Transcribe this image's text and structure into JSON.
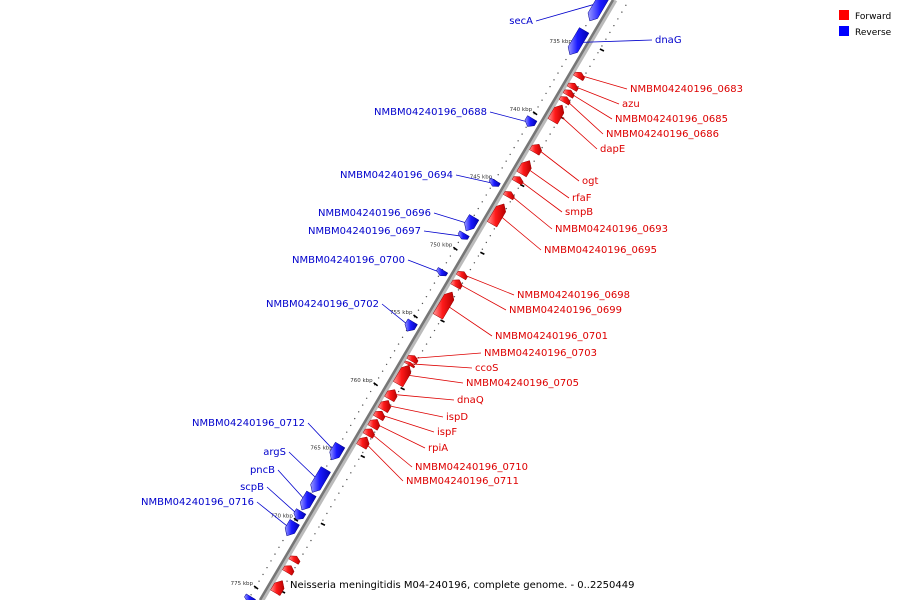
{
  "legend": {
    "forward": {
      "label": "Forward",
      "color": "#ff0000"
    },
    "reverse": {
      "label": "Reverse",
      "color": "#0000ff"
    }
  },
  "caption": "Neisseria meningitidis M04-240196, complete genome. - 0..2250449",
  "axis": {
    "unit": "kbp",
    "ticks": [
      {
        "label": "735 kbp",
        "kbp": 735
      },
      {
        "label": "740 kbp",
        "kbp": 740
      },
      {
        "label": "745 kbp",
        "kbp": 745
      },
      {
        "label": "750 kbp",
        "kbp": 750
      },
      {
        "label": "755 kbp",
        "kbp": 755
      },
      {
        "label": "760 kbp",
        "kbp": 760
      },
      {
        "label": "765 kbp",
        "kbp": 765
      },
      {
        "label": "770 kbp",
        "kbp": 770
      },
      {
        "label": "775 kbp",
        "kbp": 775
      }
    ]
  },
  "genes": [
    {
      "name": "secA",
      "strand": "reverse",
      "start": 730.8,
      "end": 733.5
    },
    {
      "name": "dnaG",
      "strand": "reverse",
      "start": 734.2,
      "end": 736.0
    },
    {
      "name": "NMBM04240196_0683",
      "strand": "forward",
      "start": 736.6,
      "end": 737.0
    },
    {
      "name": "azu",
      "strand": "forward",
      "start": 737.4,
      "end": 737.8
    },
    {
      "name": "NMBM04240196_0685",
      "strand": "forward",
      "start": 737.9,
      "end": 738.3
    },
    {
      "name": "NMBM04240196_0686",
      "strand": "forward",
      "start": 738.4,
      "end": 738.8
    },
    {
      "name": "dapE",
      "strand": "forward",
      "start": 739.0,
      "end": 740.2
    },
    {
      "name": "NMBM04240196_0688",
      "strand": "reverse",
      "start": 740.7,
      "end": 741.3
    },
    {
      "name": "ogt",
      "strand": "forward",
      "start": 741.9,
      "end": 742.5
    },
    {
      "name": "rfaF",
      "strand": "forward",
      "start": 743.1,
      "end": 744.1
    },
    {
      "name": "smpB",
      "strand": "forward",
      "start": 744.3,
      "end": 744.7
    },
    {
      "name": "NMBM04240196_0694",
      "strand": "reverse",
      "start": 745.3,
      "end": 745.7
    },
    {
      "name": "NMBM04240196_0693",
      "strand": "forward",
      "start": 745.4,
      "end": 745.8
    },
    {
      "name": "NMBM04240196_0695",
      "strand": "forward",
      "start": 746.3,
      "end": 747.8
    },
    {
      "name": "NMBM04240196_0696",
      "strand": "reverse",
      "start": 748.0,
      "end": 749.0
    },
    {
      "name": "NMBM04240196_0697",
      "strand": "reverse",
      "start": 749.2,
      "end": 749.6
    },
    {
      "name": "NMBM04240196_0700",
      "strand": "reverse",
      "start": 751.9,
      "end": 752.3
    },
    {
      "name": "NMBM04240196_0698",
      "strand": "forward",
      "start": 751.3,
      "end": 751.7
    },
    {
      "name": "NMBM04240196_0699",
      "strand": "forward",
      "start": 751.9,
      "end": 752.4
    },
    {
      "name": "NMBM04240196_0701",
      "strand": "forward",
      "start": 752.8,
      "end": 754.6
    },
    {
      "name": "NMBM04240196_0702",
      "strand": "reverse",
      "start": 755.7,
      "end": 756.4
    },
    {
      "name": "NMBM04240196_0703",
      "strand": "forward",
      "start": 757.5,
      "end": 757.9
    },
    {
      "name": "ccoS",
      "strand": "forward",
      "start": 758.0,
      "end": 758.2
    },
    {
      "name": "NMBM04240196_0705",
      "strand": "forward",
      "start": 758.2,
      "end": 759.6
    },
    {
      "name": "dnaQ",
      "strand": "forward",
      "start": 760.0,
      "end": 760.7
    },
    {
      "name": "ispD",
      "strand": "forward",
      "start": 760.8,
      "end": 761.5
    },
    {
      "name": "ispF",
      "strand": "forward",
      "start": 761.6,
      "end": 762.1
    },
    {
      "name": "rpiA",
      "strand": "forward",
      "start": 762.2,
      "end": 762.8
    },
    {
      "name": "NMBM04240196_0710",
      "strand": "forward",
      "start": 762.9,
      "end": 763.4
    },
    {
      "name": "NMBM04240196_0711",
      "strand": "forward",
      "start": 763.5,
      "end": 764.2
    },
    {
      "name": "NMBM04240196_0712",
      "strand": "reverse",
      "start": 764.8,
      "end": 765.9
    },
    {
      "name": "argS",
      "strand": "reverse",
      "start": 766.6,
      "end": 768.3
    },
    {
      "name": "pncB",
      "strand": "reverse",
      "start": 768.4,
      "end": 769.6
    },
    {
      "name": "scpB",
      "strand": "reverse",
      "start": 769.7,
      "end": 770.3
    },
    {
      "name": "NMBM04240196_0716",
      "strand": "reverse",
      "start": 770.5,
      "end": 771.5
    }
  ],
  "unlabeled_genes": [
    {
      "strand": "forward",
      "start": 772.3,
      "end": 772.7
    },
    {
      "strand": "forward",
      "start": 773.0,
      "end": 773.5
    },
    {
      "strand": "forward",
      "start": 774.1,
      "end": 775.0
    },
    {
      "strand": "reverse",
      "start": 776.0,
      "end": 776.4
    }
  ]
}
